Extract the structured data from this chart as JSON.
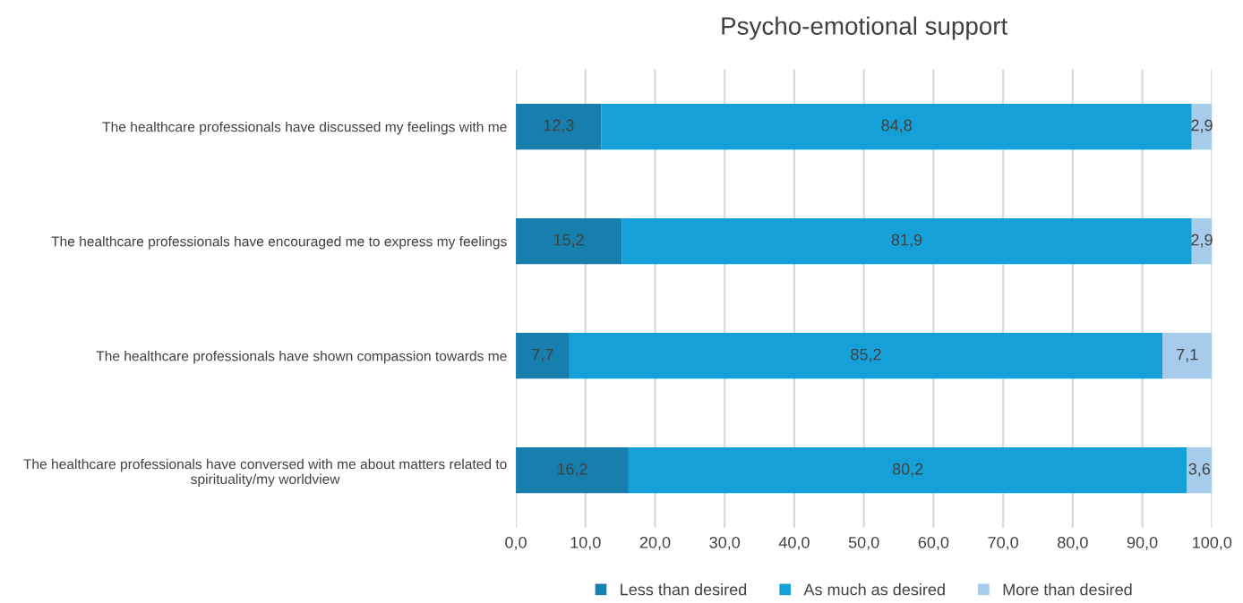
{
  "chart_data": {
    "type": "bar",
    "orientation": "horizontal",
    "stacked": true,
    "title": "Psycho-emotional support",
    "categories": [
      "The healthcare professionals have discussed my feelings with me",
      "The healthcare professionals have encouraged me to express my feelings",
      "The healthcare professionals have shown compassion towards me",
      "The healthcare professionals have conversed with me about matters related to\nspirituality/my worldview"
    ],
    "series": [
      {
        "name": "Less than desired",
        "color": "#177fae",
        "values": [
          12.3,
          15.2,
          7.7,
          16.2
        ],
        "value_labels": [
          "12,3",
          "15,2",
          "7,7",
          "16,2"
        ]
      },
      {
        "name": "As much as desired",
        "color": "#16a0d8",
        "values": [
          84.8,
          81.9,
          85.2,
          80.2
        ],
        "value_labels": [
          "84,8",
          "81,9",
          "85,2",
          "80,2"
        ]
      },
      {
        "name": "More than desired",
        "color": "#a7cbea",
        "values": [
          2.9,
          2.9,
          7.1,
          3.6
        ],
        "value_labels": [
          "2,9",
          "2,9",
          "7,1",
          "3,6"
        ]
      }
    ],
    "xlim": [
      0,
      100
    ],
    "xticks": [
      {
        "value": 0,
        "label": "0,0"
      },
      {
        "value": 10,
        "label": "10,0"
      },
      {
        "value": 20,
        "label": "20,0"
      },
      {
        "value": 30,
        "label": "30,0"
      },
      {
        "value": 40,
        "label": "40,0"
      },
      {
        "value": 50,
        "label": "50,0"
      },
      {
        "value": 60,
        "label": "60,0"
      },
      {
        "value": 70,
        "label": "70,0"
      },
      {
        "value": 80,
        "label": "80,0"
      },
      {
        "value": 90,
        "label": "90,0"
      },
      {
        "value": 100,
        "label": "100,0"
      }
    ],
    "grid": "x",
    "legend": "bottom"
  }
}
